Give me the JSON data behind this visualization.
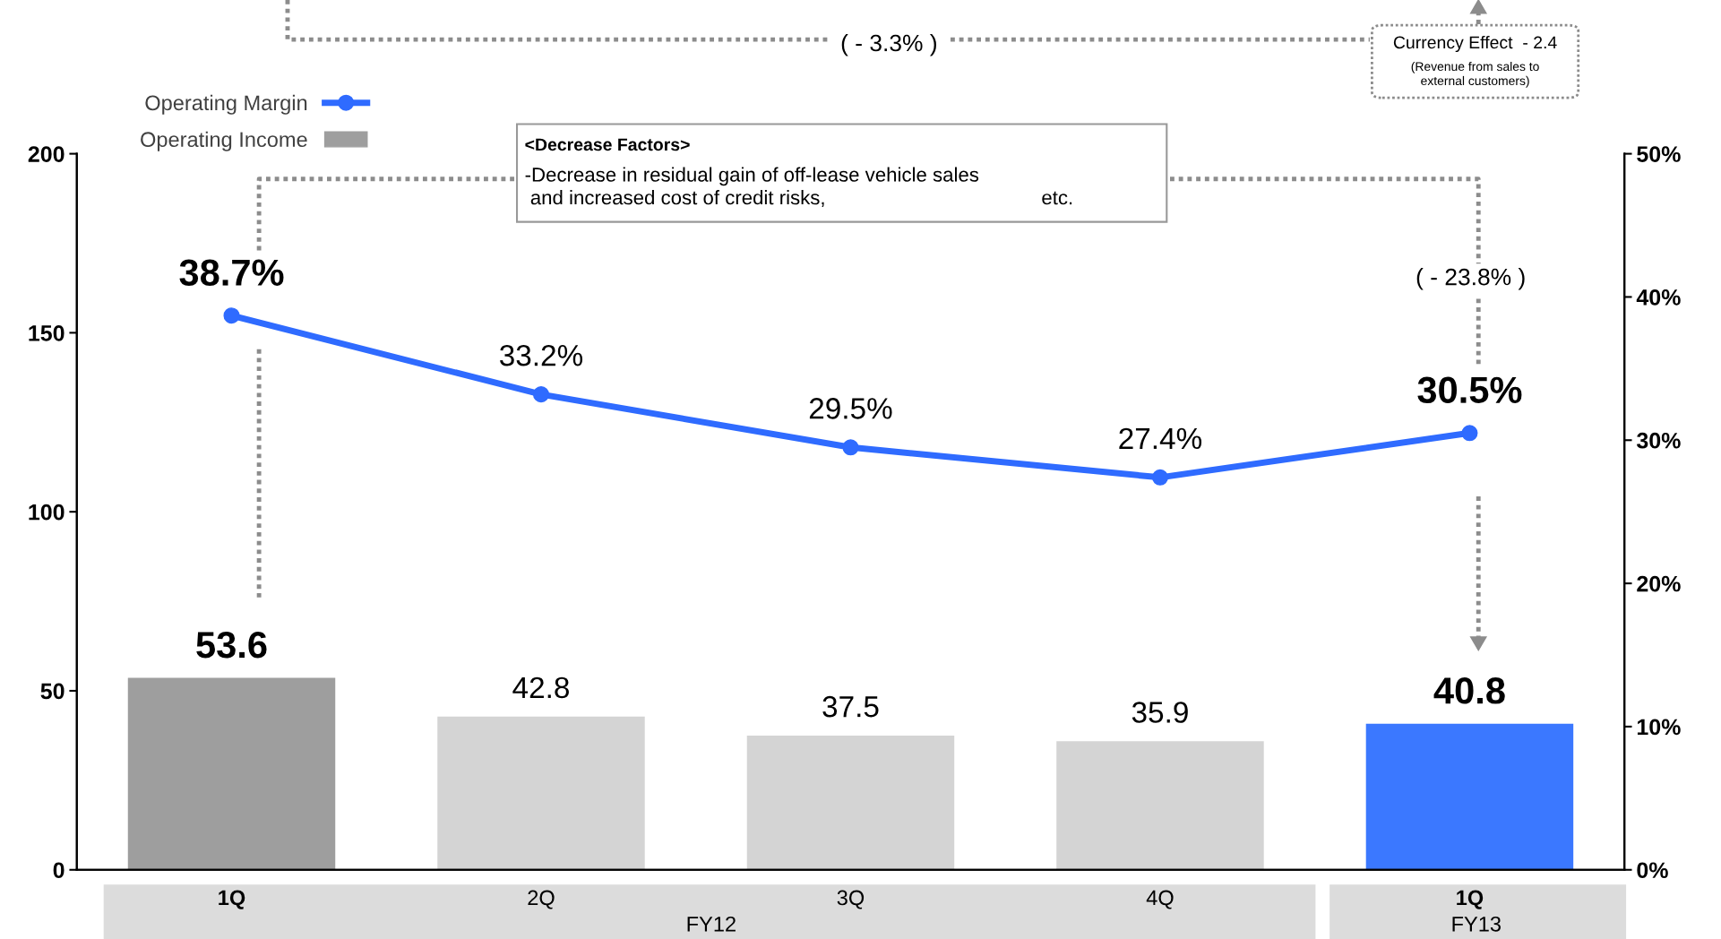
{
  "chart_data": {
    "type": "bar",
    "categories": [
      "1Q",
      "2Q",
      "3Q",
      "4Q",
      "1Q"
    ],
    "series": [
      {
        "name": "Operating Income",
        "colors": [
          "#9e9e9e",
          "#d4d4d4",
          "#d4d4d4",
          "#d4d4d4",
          "#3b78ff"
        ],
        "values": [
          53.6,
          42.8,
          37.5,
          35.9,
          40.8
        ]
      },
      {
        "name": "Operating Margin",
        "type": "line",
        "axis": "y2",
        "color": "#2f6bff",
        "values": [
          38.7,
          33.2,
          29.5,
          27.4,
          30.5
        ],
        "value_labels": [
          "38.7%",
          "33.2%",
          "29.5%",
          "27.4%",
          "30.5%"
        ]
      }
    ],
    "data_labels": true,
    "ylim": [
      0,
      200
    ],
    "yticks": [
      0,
      50,
      100,
      150,
      200
    ],
    "y2lim": [
      0,
      50
    ],
    "y2ticks": [
      {
        "value": 0,
        "label": "0%"
      },
      {
        "value": 10,
        "label": "10%"
      },
      {
        "value": 20,
        "label": "20%"
      },
      {
        "value": 30,
        "label": "30%"
      },
      {
        "value": 40,
        "label": "40%"
      },
      {
        "value": 50,
        "label": "50%"
      }
    ],
    "marker": "circle",
    "line_style": "solid",
    "legend": "top left",
    "grid": false,
    "annotations": [
      "FY12",
      "FY13",
      "( - 3.3% )",
      "Currency Effect  - 2.4",
      "(Revenue from sales to\nexternal customers)",
      "<Decrease Factors>",
      "-Decrease in residual gain of off-lease vehicle sales\n and increased cost of credit risks,                                       etc.",
      "( - 23.8% )"
    ]
  }
}
